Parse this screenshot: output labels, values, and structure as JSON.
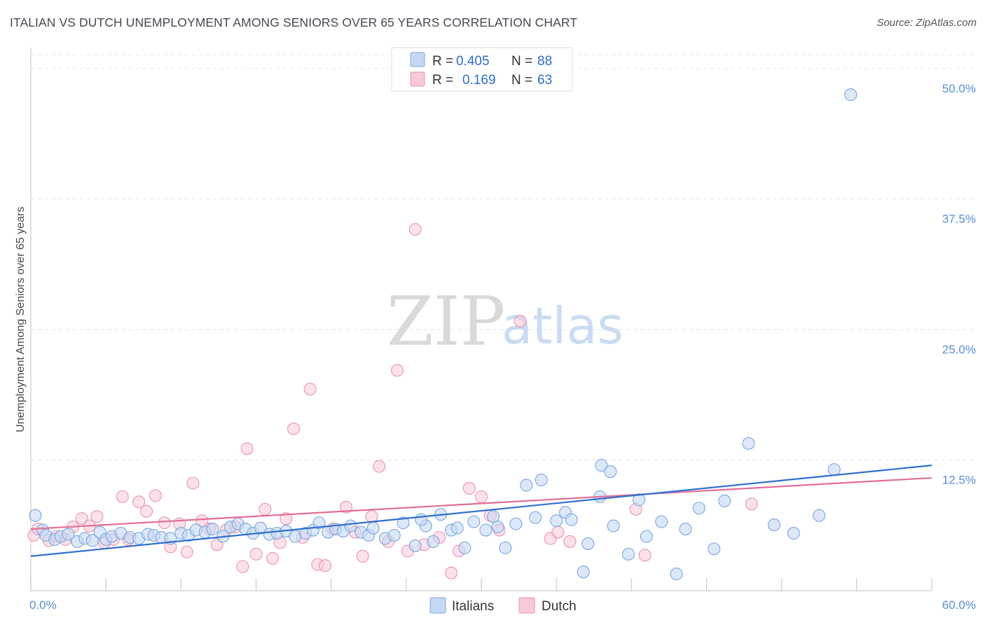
{
  "title": "ITALIAN VS DUTCH UNEMPLOYMENT AMONG SENIORS OVER 65 YEARS CORRELATION CHART",
  "source": "Source: ZipAtlas.com",
  "watermark": {
    "zip": "ZIP",
    "atlas": "atlas"
  },
  "colors": {
    "italians_fill": "#c5d8f3",
    "italians_stroke": "#7aa6e0",
    "italians_line": "#2f6fd0",
    "dutch_fill": "#f8c9d8",
    "dutch_stroke": "#ea95b2",
    "dutch_line": "#e36d98",
    "grid": "#e3e3e3",
    "axis": "#cccccc"
  },
  "legend": {
    "r_label": "R =",
    "n_label": "N =",
    "italians": {
      "r": "0.405",
      "n": "88"
    },
    "dutch": {
      "r": "0.169",
      "n": "63"
    }
  },
  "chart_data": {
    "type": "scatter",
    "title": "ITALIAN VS DUTCH UNEMPLOYMENT AMONG SENIORS OVER 65 YEARS CORRELATION CHART",
    "xlabel": "",
    "ylabel": "Unemployment Among Seniors over 65 years",
    "xlim": [
      0,
      60
    ],
    "ylim": [
      0,
      52
    ],
    "x_tick_labels": [
      "0.0%",
      "60.0%"
    ],
    "y_ticks": [
      12.5,
      25.0,
      37.5,
      50.0
    ],
    "y_tick_labels": [
      "12.5%",
      "25.0%",
      "37.5%",
      "50.0%"
    ],
    "legend_position": "top-center",
    "series": [
      {
        "name": "Italians",
        "r": 0.405,
        "n": 88,
        "trend": {
          "x": [
            0,
            60
          ],
          "y": [
            3.3,
            12.0
          ]
        },
        "points": [
          [
            0.3,
            7.2
          ],
          [
            0.8,
            5.8
          ],
          [
            1.0,
            5.3
          ],
          [
            1.6,
            4.9
          ],
          [
            2.0,
            5.2
          ],
          [
            2.5,
            5.4
          ],
          [
            3.1,
            4.7
          ],
          [
            3.6,
            5.0
          ],
          [
            4.1,
            4.8
          ],
          [
            4.6,
            5.6
          ],
          [
            5.0,
            4.9
          ],
          [
            5.4,
            5.2
          ],
          [
            6.0,
            5.5
          ],
          [
            6.6,
            5.1
          ],
          [
            7.2,
            5.0
          ],
          [
            7.8,
            5.4
          ],
          [
            8.2,
            5.3
          ],
          [
            8.7,
            5.1
          ],
          [
            9.3,
            5.0
          ],
          [
            10.0,
            5.5
          ],
          [
            10.5,
            5.3
          ],
          [
            11.0,
            5.8
          ],
          [
            11.6,
            5.6
          ],
          [
            12.1,
            5.9
          ],
          [
            12.8,
            5.2
          ],
          [
            13.3,
            6.1
          ],
          [
            13.8,
            6.4
          ],
          [
            14.3,
            5.9
          ],
          [
            14.8,
            5.5
          ],
          [
            15.3,
            6.0
          ],
          [
            15.9,
            5.4
          ],
          [
            16.4,
            5.5
          ],
          [
            17.0,
            5.7
          ],
          [
            17.6,
            5.2
          ],
          [
            18.3,
            5.5
          ],
          [
            18.8,
            5.8
          ],
          [
            19.2,
            6.5
          ],
          [
            19.8,
            5.6
          ],
          [
            20.3,
            5.9
          ],
          [
            20.8,
            5.7
          ],
          [
            21.3,
            6.2
          ],
          [
            22.0,
            5.6
          ],
          [
            22.5,
            5.3
          ],
          [
            22.8,
            6.0
          ],
          [
            23.6,
            5.0
          ],
          [
            24.2,
            5.3
          ],
          [
            24.8,
            6.5
          ],
          [
            25.6,
            4.3
          ],
          [
            26.3,
            6.2
          ],
          [
            26.8,
            4.7
          ],
          [
            27.3,
            7.3
          ],
          [
            28.0,
            5.8
          ],
          [
            28.4,
            6.0
          ],
          [
            28.9,
            4.1
          ],
          [
            29.5,
            6.6
          ],
          [
            30.3,
            5.8
          ],
          [
            30.8,
            7.1
          ],
          [
            31.1,
            6.1
          ],
          [
            31.6,
            4.1
          ],
          [
            32.3,
            6.4
          ],
          [
            33.0,
            10.1
          ],
          [
            34.0,
            10.6
          ],
          [
            35.0,
            6.7
          ],
          [
            35.6,
            7.5
          ],
          [
            36.0,
            6.8
          ],
          [
            37.1,
            4.5
          ],
          [
            37.9,
            9.0
          ],
          [
            38.0,
            12.0
          ],
          [
            38.6,
            11.4
          ],
          [
            39.8,
            3.5
          ],
          [
            40.5,
            8.7
          ],
          [
            43.0,
            1.6
          ],
          [
            43.6,
            5.9
          ],
          [
            44.5,
            7.9
          ],
          [
            47.8,
            14.1
          ],
          [
            52.5,
            7.2
          ],
          [
            53.5,
            11.6
          ],
          [
            54.6,
            47.5
          ],
          [
            36.8,
            1.8
          ],
          [
            41.0,
            5.2
          ],
          [
            45.5,
            4.0
          ],
          [
            42.0,
            6.6
          ],
          [
            46.2,
            8.6
          ],
          [
            49.5,
            6.3
          ],
          [
            50.8,
            5.5
          ],
          [
            26.0,
            6.8
          ],
          [
            33.6,
            7.0
          ],
          [
            38.8,
            6.2
          ]
        ]
      },
      {
        "name": "Dutch",
        "r": 0.169,
        "n": 63,
        "trend": {
          "x": [
            0,
            60
          ],
          "y": [
            5.9,
            10.8
          ]
        },
        "points": [
          [
            0.2,
            5.3
          ],
          [
            0.5,
            5.9
          ],
          [
            1.2,
            4.8
          ],
          [
            1.7,
            5.2
          ],
          [
            2.3,
            4.9
          ],
          [
            2.8,
            6.1
          ],
          [
            3.4,
            6.9
          ],
          [
            3.9,
            6.2
          ],
          [
            4.4,
            7.1
          ],
          [
            4.9,
            4.6
          ],
          [
            5.5,
            4.9
          ],
          [
            6.1,
            9.0
          ],
          [
            6.5,
            4.9
          ],
          [
            7.2,
            8.5
          ],
          [
            7.7,
            7.6
          ],
          [
            8.3,
            9.1
          ],
          [
            8.9,
            6.5
          ],
          [
            9.3,
            4.2
          ],
          [
            9.9,
            6.4
          ],
          [
            10.4,
            3.7
          ],
          [
            10.8,
            10.3
          ],
          [
            11.4,
            6.7
          ],
          [
            11.9,
            5.9
          ],
          [
            12.4,
            4.4
          ],
          [
            13.0,
            5.8
          ],
          [
            13.6,
            6.1
          ],
          [
            14.1,
            2.3
          ],
          [
            14.4,
            13.6
          ],
          [
            15.0,
            3.5
          ],
          [
            15.6,
            7.8
          ],
          [
            16.1,
            3.1
          ],
          [
            16.6,
            4.6
          ],
          [
            17.0,
            6.9
          ],
          [
            17.5,
            15.5
          ],
          [
            18.1,
            5.1
          ],
          [
            18.6,
            19.3
          ],
          [
            19.1,
            2.5
          ],
          [
            19.6,
            2.4
          ],
          [
            20.1,
            5.9
          ],
          [
            21.0,
            8.0
          ],
          [
            21.6,
            5.6
          ],
          [
            22.1,
            3.3
          ],
          [
            22.7,
            7.1
          ],
          [
            23.2,
            11.9
          ],
          [
            23.8,
            4.7
          ],
          [
            24.4,
            21.1
          ],
          [
            25.1,
            3.8
          ],
          [
            25.6,
            34.6
          ],
          [
            26.2,
            4.4
          ],
          [
            27.2,
            5.1
          ],
          [
            28.0,
            1.7
          ],
          [
            28.5,
            3.8
          ],
          [
            29.2,
            9.8
          ],
          [
            30.0,
            9.0
          ],
          [
            30.6,
            7.2
          ],
          [
            31.2,
            5.8
          ],
          [
            32.6,
            25.8
          ],
          [
            34.6,
            5.0
          ],
          [
            35.1,
            5.6
          ],
          [
            35.9,
            4.7
          ],
          [
            40.3,
            7.8
          ],
          [
            40.9,
            3.4
          ],
          [
            48.0,
            8.3
          ]
        ]
      }
    ]
  },
  "bottom_legend": [
    "Italians",
    "Dutch"
  ]
}
